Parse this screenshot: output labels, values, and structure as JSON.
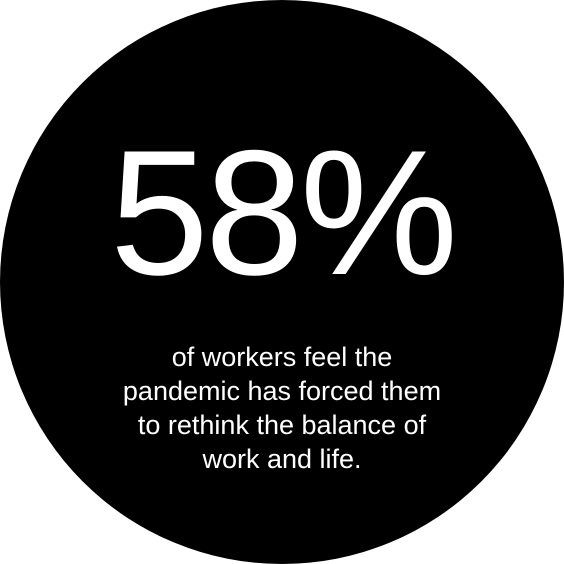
{
  "stat": {
    "value": "58%",
    "caption_lines": [
      "of workers feel the",
      "pandemic has forced them",
      "to rethink the balance of",
      "work and life."
    ]
  },
  "colors": {
    "circle": "#000000",
    "text": "#ffffff",
    "background": "#ffffff"
  }
}
